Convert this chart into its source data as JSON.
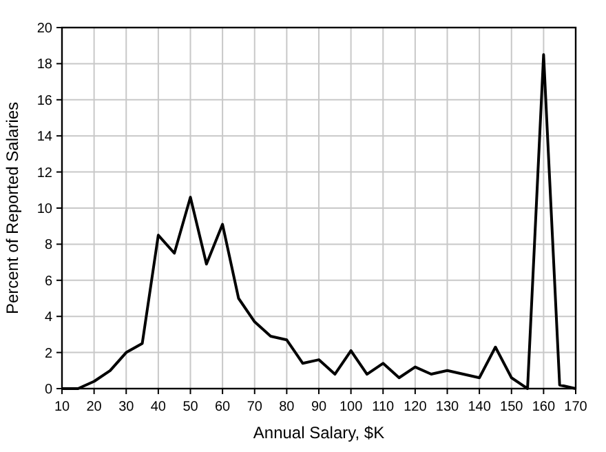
{
  "chart_data": {
    "type": "line",
    "xlabel": "Annual Salary, $K",
    "ylabel": "Percent of Reported Salaries",
    "x": [
      10,
      15,
      20,
      25,
      30,
      35,
      40,
      45,
      50,
      55,
      60,
      65,
      70,
      75,
      80,
      85,
      90,
      95,
      100,
      105,
      110,
      115,
      120,
      125,
      130,
      135,
      140,
      145,
      150,
      155,
      160,
      165,
      170
    ],
    "series": [
      {
        "color": "#000000",
        "values": [
          0,
          0,
          0.4,
          1,
          2,
          2.5,
          8.5,
          7.5,
          10.6,
          6.9,
          9.1,
          5,
          3.7,
          2.9,
          2.7,
          1.4,
          1.6,
          0.8,
          2.1,
          0.8,
          1.4,
          0.6,
          1.2,
          0.8,
          1,
          0.8,
          0.6,
          2.3,
          0.6,
          0,
          18.5,
          0.2,
          0
        ]
      }
    ],
    "xlim": [
      10,
      170
    ],
    "xticks": [
      10,
      20,
      30,
      40,
      50,
      60,
      70,
      80,
      90,
      100,
      110,
      120,
      130,
      140,
      150,
      160,
      170
    ],
    "ylim": [
      0,
      20
    ],
    "yticks": [
      0,
      2,
      4,
      6,
      8,
      10,
      12,
      14,
      16,
      18,
      20
    ],
    "grid": true,
    "marker": "none",
    "line_style": "solid"
  }
}
